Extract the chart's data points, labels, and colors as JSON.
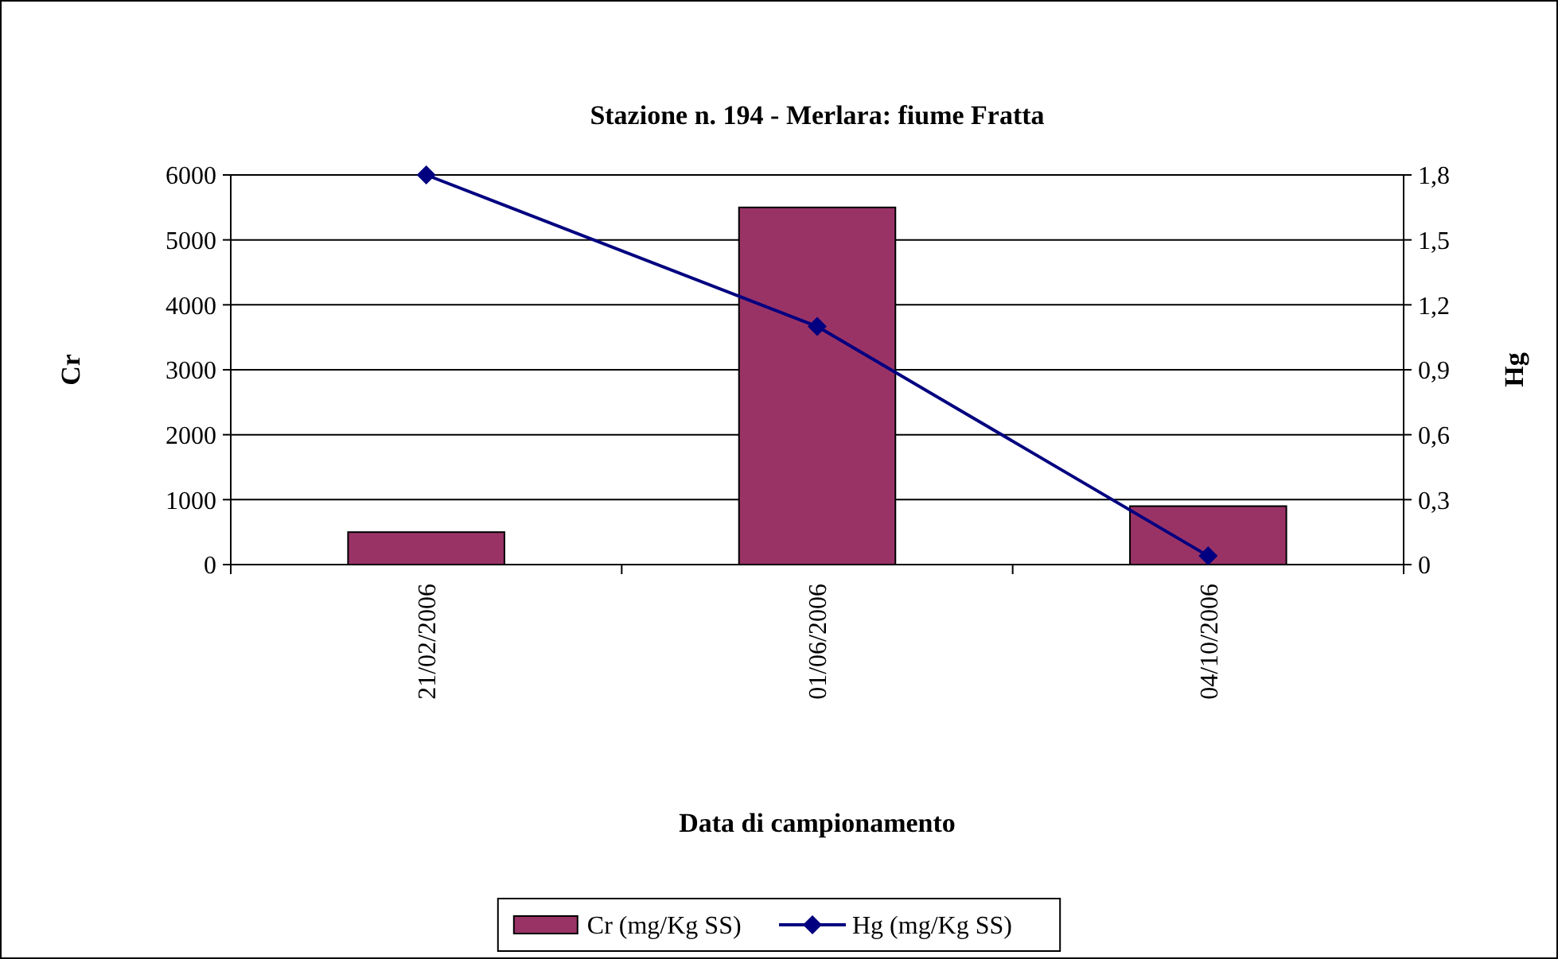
{
  "chart_data": {
    "type": "bar",
    "title": "Stazione n. 194 - Merlara: fiume Fratta",
    "xlabel": "Data di campionamento",
    "ylabel": "Cr",
    "y2label": "Hg",
    "categories": [
      "21/02/2006",
      "01/06/2006",
      "04/10/2006"
    ],
    "series": [
      {
        "name": "Cr (mg/Kg SS)",
        "color": "#993366",
        "values": [
          500,
          5500,
          900
        ]
      },
      {
        "name": "Hg (mg/Kg SS)",
        "type": "line",
        "axis": "y2",
        "color": "#000080",
        "values": [
          1.8,
          1.1,
          0.04
        ],
        "marker": "diamond"
      }
    ],
    "ylim": [
      0,
      6000
    ],
    "yticks": [
      0,
      1000,
      2000,
      3000,
      4000,
      5000,
      6000
    ],
    "y2lim": [
      0,
      1.8
    ],
    "y2ticks": [
      0,
      {
        "value": 0.3,
        "label": "0,3"
      },
      {
        "value": 0.6,
        "label": "0,6"
      },
      {
        "value": 0.9,
        "label": "0,9"
      },
      {
        "value": 1.2,
        "label": "1,2"
      },
      {
        "value": 1.5,
        "label": "1,5"
      },
      {
        "value": 1.8,
        "label": "1,8"
      }
    ],
    "grid": "y",
    "legend": "bottom"
  }
}
